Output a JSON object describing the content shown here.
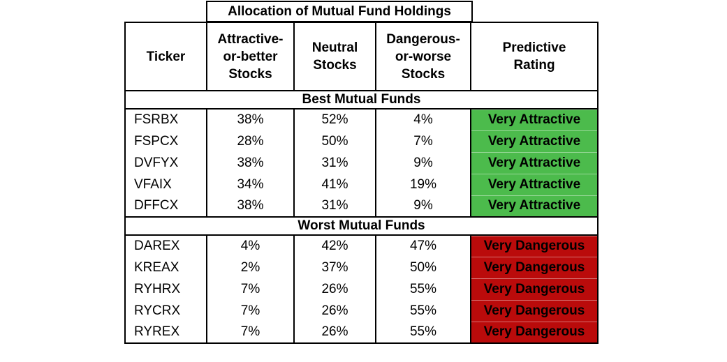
{
  "chart_data": {
    "type": "table",
    "title": "Allocation of Mutual Fund Holdings",
    "columns": [
      "Ticker",
      "Attractive-or-better Stocks",
      "Neutral Stocks",
      "Dangerous-or-worse Stocks",
      "Predictive Rating"
    ],
    "sections": [
      {
        "label": "Best Mutual Funds",
        "rating_label": "Very Attractive",
        "rating_color": "#4CBB4C",
        "rows": [
          [
            "FSRBX",
            "38%",
            "52%",
            "4%",
            "Very Attractive"
          ],
          [
            "FSPCX",
            "28%",
            "50%",
            "7%",
            "Very Attractive"
          ],
          [
            "DVFYX",
            "38%",
            "31%",
            "9%",
            "Very Attractive"
          ],
          [
            "VFAIX",
            "34%",
            "41%",
            "19%",
            "Very Attractive"
          ],
          [
            "DFFCX",
            "38%",
            "31%",
            "9%",
            "Very Attractive"
          ]
        ]
      },
      {
        "label": "Worst Mutual Funds",
        "rating_label": "Very Dangerous",
        "rating_color": "#BA0B0B",
        "rows": [
          [
            "DAREX",
            "4%",
            "42%",
            "47%",
            "Very Dangerous"
          ],
          [
            "KREAX",
            "2%",
            "37%",
            "50%",
            "Very Dangerous"
          ],
          [
            "RYHRX",
            "7%",
            "26%",
            "55%",
            "Very Dangerous"
          ],
          [
            "RYCRX",
            "7%",
            "26%",
            "55%",
            "Very Dangerous"
          ],
          [
            "RYREX",
            "7%",
            "26%",
            "55%",
            "Very Dangerous"
          ]
        ]
      }
    ]
  },
  "header_display": [
    "Ticker",
    "Attractive-\nor-better\nStocks",
    "Neutral\nStocks",
    "Dangerous-\nor-worse\nStocks",
    "Predictive\nRating"
  ],
  "colors": {
    "rating_positive": "#4CBB4C",
    "rating_negative": "#BA0B0B",
    "border": "#000000",
    "text": "#000000",
    "background": "#FFFFFF"
  }
}
